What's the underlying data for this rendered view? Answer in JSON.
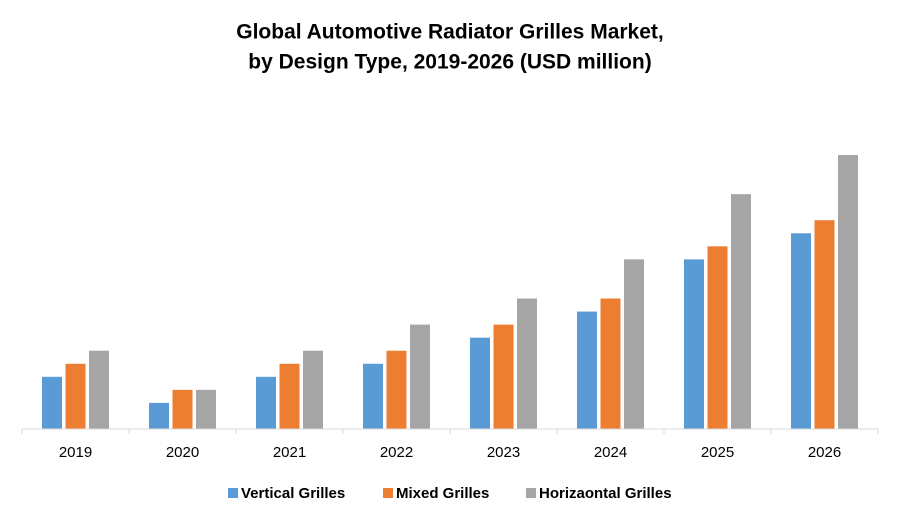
{
  "chart_data": {
    "type": "bar",
    "title": [
      "Global Automotive Radiator Grilles Market,",
      "by Design Type, 2019-2026 (USD million)"
    ],
    "categories": [
      "2019",
      "2020",
      "2021",
      "2022",
      "2023",
      "2024",
      "2025",
      "2026"
    ],
    "series": [
      {
        "name": "Vertical Grilles",
        "color": "#5b9bd5",
        "values": [
          4,
          2,
          4,
          5,
          7,
          9,
          13,
          15
        ]
      },
      {
        "name": "Mixed Grilles",
        "color": "#ed7d31",
        "values": [
          5,
          3,
          5,
          6,
          8,
          10,
          14,
          16
        ]
      },
      {
        "name": "Horizaontal Grilles",
        "color": "#a5a5a5",
        "values": [
          6,
          3,
          6,
          8,
          10,
          13,
          18,
          21
        ]
      }
    ],
    "legend": "bottom"
  }
}
